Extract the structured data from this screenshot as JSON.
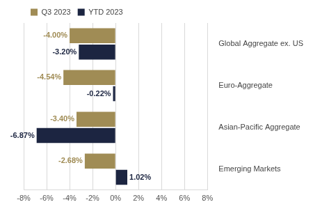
{
  "chart_data": {
    "type": "bar",
    "orientation": "horizontal",
    "categories": [
      "Global Aggregate ex. US",
      "Euro-Aggregate",
      "Asian-Pacific Aggregate",
      "Emerging Markets"
    ],
    "series": [
      {
        "name": "Q3 2023",
        "color": "#a08c55",
        "values": [
          -4.0,
          -4.54,
          -3.4,
          -2.68
        ],
        "value_labels": [
          "-4.00%",
          "-4.54%",
          "-3.40%",
          "-2.68%"
        ]
      },
      {
        "name": "YTD 2023",
        "color": "#1c2541",
        "values": [
          -3.2,
          -0.22,
          -6.87,
          1.02
        ],
        "value_labels": [
          "-3.20%",
          "-0.22%",
          "-6.87%",
          "1.02%"
        ]
      }
    ],
    "xlim": [
      -8,
      8
    ],
    "xticks": [
      {
        "value": -8,
        "label": "-8%"
      },
      {
        "value": -6,
        "label": "-6%"
      },
      {
        "value": -4,
        "label": "-4%"
      },
      {
        "value": -2,
        "label": "-2%"
      },
      {
        "value": 0,
        "label": "0%"
      },
      {
        "value": 2,
        "label": "2%"
      },
      {
        "value": 4,
        "label": "4%"
      },
      {
        "value": 6,
        "label": "6%"
      },
      {
        "value": 8,
        "label": "8%"
      }
    ],
    "grid": true,
    "legend": "top",
    "data_labels": true
  }
}
